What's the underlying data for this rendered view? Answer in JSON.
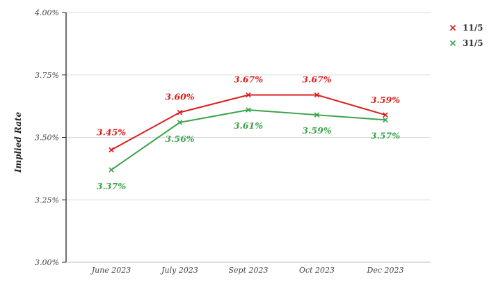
{
  "chart_data": {
    "type": "line",
    "title": "",
    "xlabel": "",
    "ylabel": "Implied Rate",
    "categories": [
      "June 2023",
      "July 2023",
      "Sept 2023",
      "Oct 2023",
      "Dec 2023"
    ],
    "ylim": [
      3.0,
      4.0
    ],
    "yticks": [
      3.0,
      3.25,
      3.5,
      3.75,
      4.0
    ],
    "ytick_labels": [
      "3.00%",
      "3.25%",
      "3.50%",
      "3.75%",
      "4.00%"
    ],
    "grid": true,
    "legend_position": "top-right",
    "series": [
      {
        "name": "11/5",
        "color": "#dd1c1c",
        "marker": "x",
        "values": [
          3.45,
          3.6,
          3.67,
          3.67,
          3.59
        ],
        "labels": [
          "3.45%",
          "3.60%",
          "3.67%",
          "3.67%",
          "3.59%"
        ]
      },
      {
        "name": "31/5",
        "color": "#3aa34a",
        "marker": "x",
        "values": [
          3.37,
          3.56,
          3.61,
          3.59,
          3.57
        ],
        "labels": [
          "3.37%",
          "3.56%",
          "3.61%",
          "3.59%",
          "3.57%"
        ]
      }
    ]
  }
}
